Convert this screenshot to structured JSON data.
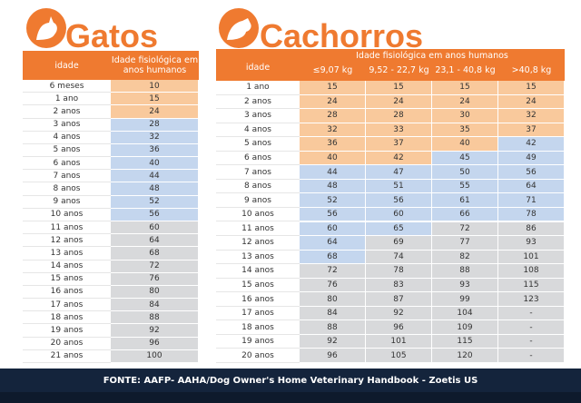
{
  "palette": {
    "peach": "#f9c99c",
    "blue": "#c4d6ee",
    "gray": "#d8d9db"
  },
  "gatos": {
    "title": "Gatos",
    "header": {
      "age": "idade",
      "value": "Idade fisiológica em anos humanos"
    },
    "rows": [
      {
        "age": "6 meses",
        "value": 10,
        "shade": "peach"
      },
      {
        "age": "1 ano",
        "value": 15,
        "shade": "peach"
      },
      {
        "age": "2 anos",
        "value": 24,
        "shade": "peach"
      },
      {
        "age": "3 anos",
        "value": 28,
        "shade": "blue"
      },
      {
        "age": "4 anos",
        "value": 32,
        "shade": "blue"
      },
      {
        "age": "5 anos",
        "value": 36,
        "shade": "blue"
      },
      {
        "age": "6 anos",
        "value": 40,
        "shade": "blue"
      },
      {
        "age": "7 anos",
        "value": 44,
        "shade": "blue"
      },
      {
        "age": "8 anos",
        "value": 48,
        "shade": "blue"
      },
      {
        "age": "9 anos",
        "value": 52,
        "shade": "blue"
      },
      {
        "age": "10 anos",
        "value": 56,
        "shade": "blue"
      },
      {
        "age": "11 anos",
        "value": 60,
        "shade": "gray"
      },
      {
        "age": "12 anos",
        "value": 64,
        "shade": "gray"
      },
      {
        "age": "13 anos",
        "value": 68,
        "shade": "gray"
      },
      {
        "age": "14 anos",
        "value": 72,
        "shade": "gray"
      },
      {
        "age": "15 anos",
        "value": 76,
        "shade": "gray"
      },
      {
        "age": "16 anos",
        "value": 80,
        "shade": "gray"
      },
      {
        "age": "17 anos",
        "value": 84,
        "shade": "gray"
      },
      {
        "age": "18 anos",
        "value": 88,
        "shade": "gray"
      },
      {
        "age": "19 anos",
        "value": 92,
        "shade": "gray"
      },
      {
        "age": "20 anos",
        "value": 96,
        "shade": "gray"
      },
      {
        "age": "21 anos",
        "value": 100,
        "shade": "gray"
      }
    ]
  },
  "cachorros": {
    "title": "Cachorros",
    "header": {
      "age": "idade",
      "group": "Idade fisiológica  em anos humanos",
      "columns": [
        "≤9,07 kg",
        "9,52 - 22,7 kg",
        "23,1 - 40,8 kg",
        ">40,8 kg"
      ]
    },
    "rows": [
      {
        "age": "1 ano",
        "values": [
          15,
          15,
          15,
          15
        ],
        "shades": [
          "peach",
          "peach",
          "peach",
          "peach"
        ]
      },
      {
        "age": "2 anos",
        "values": [
          24,
          24,
          24,
          24
        ],
        "shades": [
          "peach",
          "peach",
          "peach",
          "peach"
        ]
      },
      {
        "age": "3 anos",
        "values": [
          28,
          28,
          30,
          32
        ],
        "shades": [
          "peach",
          "peach",
          "peach",
          "peach"
        ]
      },
      {
        "age": "4 anos",
        "values": [
          32,
          33,
          35,
          37
        ],
        "shades": [
          "peach",
          "peach",
          "peach",
          "peach"
        ]
      },
      {
        "age": "5 anos",
        "values": [
          36,
          37,
          40,
          42
        ],
        "shades": [
          "peach",
          "peach",
          "peach",
          "blue"
        ]
      },
      {
        "age": "6 anos",
        "values": [
          40,
          42,
          45,
          49
        ],
        "shades": [
          "peach",
          "peach",
          "blue",
          "blue"
        ]
      },
      {
        "age": "7 anos",
        "values": [
          44,
          47,
          50,
          56
        ],
        "shades": [
          "blue",
          "blue",
          "blue",
          "blue"
        ]
      },
      {
        "age": "8 anos",
        "values": [
          48,
          51,
          55,
          64
        ],
        "shades": [
          "blue",
          "blue",
          "blue",
          "blue"
        ]
      },
      {
        "age": "9 anos",
        "values": [
          52,
          56,
          61,
          71
        ],
        "shades": [
          "blue",
          "blue",
          "blue",
          "blue"
        ]
      },
      {
        "age": "10 anos",
        "values": [
          56,
          60,
          66,
          78
        ],
        "shades": [
          "blue",
          "blue",
          "blue",
          "blue"
        ]
      },
      {
        "age": "11 anos",
        "values": [
          60,
          65,
          72,
          86
        ],
        "shades": [
          "blue",
          "blue",
          "gray",
          "gray"
        ]
      },
      {
        "age": "12 anos",
        "values": [
          64,
          69,
          77,
          93
        ],
        "shades": [
          "blue",
          "gray",
          "gray",
          "gray"
        ]
      },
      {
        "age": "13 anos",
        "values": [
          68,
          74,
          82,
          101
        ],
        "shades": [
          "blue",
          "gray",
          "gray",
          "gray"
        ]
      },
      {
        "age": "14 anos",
        "values": [
          72,
          78,
          88,
          108
        ],
        "shades": [
          "gray",
          "gray",
          "gray",
          "gray"
        ]
      },
      {
        "age": "15 anos",
        "values": [
          76,
          83,
          93,
          115
        ],
        "shades": [
          "gray",
          "gray",
          "gray",
          "gray"
        ]
      },
      {
        "age": "16 anos",
        "values": [
          80,
          87,
          99,
          123
        ],
        "shades": [
          "gray",
          "gray",
          "gray",
          "gray"
        ]
      },
      {
        "age": "17 anos",
        "values": [
          84,
          92,
          104,
          "-"
        ],
        "shades": [
          "gray",
          "gray",
          "gray",
          "gray"
        ]
      },
      {
        "age": "18 anos",
        "values": [
          88,
          96,
          109,
          "-"
        ],
        "shades": [
          "gray",
          "gray",
          "gray",
          "gray"
        ]
      },
      {
        "age": "19 anos",
        "values": [
          92,
          101,
          115,
          "-"
        ],
        "shades": [
          "gray",
          "gray",
          "gray",
          "gray"
        ]
      },
      {
        "age": "20 anos",
        "values": [
          96,
          105,
          120,
          "-"
        ],
        "shades": [
          "gray",
          "gray",
          "gray",
          "gray"
        ]
      }
    ]
  },
  "footer": {
    "source": "FONTE: AAFP- AAHA/Dog Owner's Home Veterinary Handbook - Zoetis US"
  }
}
